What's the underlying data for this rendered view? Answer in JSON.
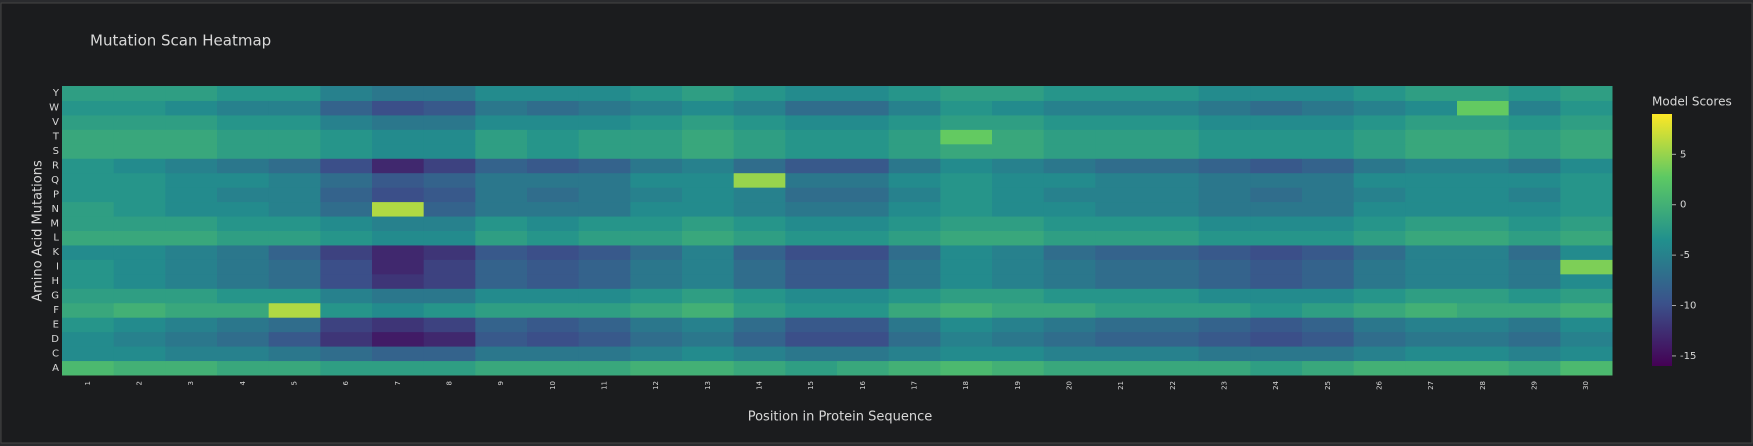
{
  "chart_data": {
    "type": "heatmap",
    "title": "Mutation Scan Heatmap",
    "xlabel": "Position in Protein Sequence",
    "ylabel": "Amino Acid Mutations",
    "colorbar_title": "Model Scores",
    "x": [
      1,
      2,
      3,
      4,
      5,
      6,
      7,
      8,
      9,
      10,
      11,
      12,
      13,
      14,
      15,
      16,
      17,
      18,
      19,
      20,
      21,
      22,
      23,
      24,
      25,
      26,
      27,
      28,
      29,
      30
    ],
    "xlim": [
      0.5,
      30.5
    ],
    "y": [
      "A",
      "C",
      "D",
      "E",
      "F",
      "G",
      "H",
      "I",
      "K",
      "L",
      "M",
      "N",
      "P",
      "Q",
      "R",
      "S",
      "T",
      "V",
      "W",
      "Y"
    ],
    "z": [
      [
        1,
        0,
        0,
        -1,
        -1,
        -2,
        -2,
        -2,
        -1,
        -1,
        -1,
        0,
        0,
        -1,
        -2,
        -1,
        0,
        1,
        0,
        -1,
        -1,
        -1,
        -1,
        -2,
        -1,
        0,
        0,
        0,
        -1,
        1
      ],
      [
        -4,
        -4,
        -5,
        -5,
        -6,
        -7,
        -8,
        -8,
        -6,
        -6,
        -6,
        -5,
        -4,
        -5,
        -6,
        -6,
        -5,
        -4,
        -4,
        -5,
        -5,
        -5,
        -6,
        -6,
        -6,
        -5,
        -4,
        -4,
        -5,
        -4
      ],
      [
        -4,
        -5,
        -6,
        -7,
        -9,
        -12,
        -14,
        -13,
        -9,
        -10,
        -9,
        -7,
        -6,
        -8,
        -10,
        -10,
        -7,
        -5,
        -6,
        -7,
        -8,
        -8,
        -9,
        -10,
        -9,
        -7,
        -6,
        -6,
        -7,
        -5
      ],
      [
        -3,
        -4,
        -5,
        -6,
        -7,
        -11,
        -12,
        -11,
        -8,
        -9,
        -8,
        -6,
        -5,
        -7,
        -9,
        -9,
        -6,
        -4,
        -5,
        -6,
        -7,
        -7,
        -8,
        -9,
        -8,
        -6,
        -5,
        -5,
        -6,
        -4
      ],
      [
        -1,
        0,
        -1,
        -1,
        6,
        -3,
        -4,
        -3,
        -2,
        -2,
        -2,
        -1,
        0,
        -2,
        -3,
        -3,
        -1,
        0,
        -1,
        -1,
        -2,
        -2,
        -2,
        -3,
        -2,
        -1,
        0,
        -1,
        -1,
        0
      ],
      [
        -2,
        -2,
        -2,
        -3,
        -3,
        -5,
        -6,
        -6,
        -4,
        -4,
        -4,
        -3,
        -2,
        -3,
        -4,
        -4,
        -3,
        -2,
        -2,
        -3,
        -3,
        -3,
        -4,
        -4,
        -4,
        -3,
        -2,
        -2,
        -3,
        -2
      ],
      [
        -3,
        -4,
        -5,
        -6,
        -7,
        -10,
        -12,
        -11,
        -8,
        -9,
        -8,
        -6,
        -5,
        -7,
        -9,
        -9,
        -6,
        -4,
        -5,
        -6,
        -7,
        -7,
        -8,
        -9,
        -8,
        -6,
        -5,
        -5,
        -6,
        -4
      ],
      [
        -3,
        -4,
        -5,
        -6,
        -7,
        -10,
        -13,
        -11,
        -8,
        -9,
        -8,
        -6,
        -5,
        -7,
        -9,
        -9,
        -6,
        -4,
        -5,
        -6,
        -7,
        -7,
        -8,
        -9,
        -8,
        -6,
        -5,
        -5,
        -6,
        4
      ],
      [
        -4,
        -4,
        -5,
        -6,
        -8,
        -11,
        -13,
        -12,
        -9,
        -10,
        -9,
        -7,
        -5,
        -8,
        -10,
        -10,
        -7,
        -4,
        -5,
        -7,
        -8,
        -8,
        -9,
        -10,
        -9,
        -7,
        -5,
        -5,
        -7,
        -4
      ],
      [
        -1,
        -1,
        -1,
        -2,
        -2,
        -3,
        -4,
        -4,
        -2,
        -3,
        -2,
        -2,
        -1,
        -2,
        -3,
        -3,
        -2,
        -1,
        -1,
        -2,
        -2,
        -2,
        -3,
        -3,
        -3,
        -2,
        -1,
        -1,
        -2,
        -1
      ],
      [
        -2,
        -2,
        -2,
        -3,
        -3,
        -4,
        -5,
        -5,
        -3,
        -4,
        -3,
        -3,
        -2,
        -3,
        -4,
        -4,
        -3,
        -2,
        -2,
        -3,
        -3,
        -3,
        -4,
        -4,
        -4,
        -3,
        -2,
        -2,
        -3,
        -2
      ],
      [
        -2,
        -3,
        -4,
        -4,
        -5,
        -7,
        6,
        -8,
        -6,
        -6,
        -6,
        -4,
        -4,
        -5,
        -6,
        -6,
        -4,
        -3,
        -4,
        -4,
        -5,
        -5,
        -6,
        -6,
        -6,
        -4,
        -4,
        -4,
        -4,
        -3
      ],
      [
        -3,
        -3,
        -4,
        -5,
        -5,
        -8,
        -10,
        -9,
        -6,
        -7,
        -6,
        -5,
        -4,
        -5,
        -7,
        -7,
        -5,
        -3,
        -4,
        -5,
        -5,
        -5,
        -6,
        -7,
        -6,
        -5,
        -4,
        -4,
        -5,
        -3
      ],
      [
        -3,
        -3,
        -4,
        -4,
        -5,
        -7,
        -9,
        -8,
        -6,
        -6,
        -6,
        -4,
        -4,
        5,
        -6,
        -6,
        -4,
        -3,
        -4,
        -4,
        -5,
        -5,
        -6,
        -6,
        -6,
        -4,
        -4,
        -4,
        -4,
        -3
      ],
      [
        -3,
        -4,
        -5,
        -6,
        -7,
        -10,
        -13,
        -11,
        -8,
        -9,
        -8,
        -6,
        -5,
        -7,
        -9,
        -9,
        -6,
        -4,
        -5,
        -6,
        -7,
        -7,
        -8,
        -9,
        -8,
        -6,
        -5,
        -5,
        -6,
        -4
      ],
      [
        -1,
        -1,
        -1,
        -2,
        -2,
        -3,
        -4,
        -4,
        -2,
        -3,
        -2,
        -2,
        -1,
        -2,
        -3,
        -3,
        -2,
        -1,
        -1,
        -2,
        -2,
        -2,
        -3,
        -3,
        -3,
        -2,
        -1,
        -1,
        -2,
        -1
      ],
      [
        -1,
        -1,
        -1,
        -2,
        -2,
        -3,
        -4,
        -4,
        -2,
        -3,
        -2,
        -2,
        -1,
        -2,
        -3,
        -3,
        -2,
        3,
        -1,
        -2,
        -2,
        -2,
        -3,
        -3,
        -3,
        -2,
        -1,
        -1,
        -2,
        -1
      ],
      [
        -2,
        -2,
        -2,
        -3,
        -3,
        -5,
        -6,
        -6,
        -4,
        -4,
        -4,
        -3,
        -2,
        -3,
        -4,
        -4,
        -3,
        -2,
        -2,
        -3,
        -3,
        -3,
        -4,
        -4,
        -4,
        -3,
        -2,
        -2,
        -3,
        -2
      ],
      [
        -3,
        -3,
        -4,
        -5,
        -5,
        -8,
        -10,
        -9,
        -6,
        -7,
        -6,
        -5,
        -4,
        -5,
        -7,
        -7,
        -5,
        -3,
        -4,
        -5,
        -5,
        -5,
        -6,
        -7,
        -6,
        -5,
        -4,
        3,
        -5,
        -3
      ],
      [
        -2,
        -2,
        -2,
        -3,
        -3,
        -5,
        -6,
        -6,
        -4,
        -4,
        -4,
        -3,
        -2,
        -3,
        -4,
        -4,
        -3,
        -2,
        -2,
        -3,
        -3,
        -3,
        -4,
        -4,
        -4,
        -3,
        -2,
        -2,
        -3,
        -2
      ]
    ],
    "zlim": [
      -16,
      9
    ],
    "colorbar_ticks": [
      -15,
      -10,
      -5,
      0,
      5
    ],
    "colorscale": [
      [
        0,
        "#440154"
      ],
      [
        0.25,
        "#3b528b"
      ],
      [
        0.5,
        "#21908d"
      ],
      [
        0.75,
        "#5dc963"
      ],
      [
        1,
        "#fde725"
      ]
    ]
  }
}
